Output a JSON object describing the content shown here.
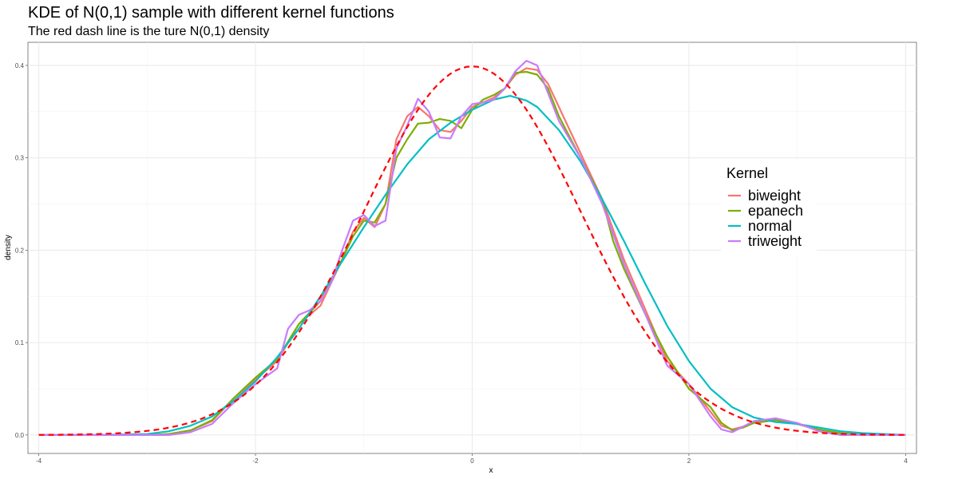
{
  "chart_data": {
    "type": "line",
    "title": "KDE of N(0,1) sample with different kernel functions",
    "subtitle": "The red dash line is the ture N(0,1) density",
    "xlabel": "x",
    "ylabel": "density",
    "xlim": [
      -4.1,
      4.1
    ],
    "ylim": [
      -0.02,
      0.425
    ],
    "x_ticks": [
      -4,
      -2,
      0,
      2,
      4
    ],
    "x_tick_labels": [
      "-4",
      "-2",
      "0",
      "2",
      "4"
    ],
    "y_ticks": [
      0.0,
      0.1,
      0.2,
      0.3,
      0.4
    ],
    "y_tick_labels": [
      "0.0",
      "0.1",
      "0.2",
      "0.3",
      "0.4"
    ],
    "grid": true,
    "legend": {
      "title": "Kernel",
      "position": "right",
      "entries": [
        "biweight",
        "epanech",
        "normal",
        "triweight"
      ]
    },
    "series": [
      {
        "name": "biweight",
        "color": "#F8766D",
        "points": [
          [
            -4,
            0
          ],
          [
            -3.5,
            0
          ],
          [
            -3,
            0
          ],
          [
            -2.8,
            0.001
          ],
          [
            -2.6,
            0.005
          ],
          [
            -2.4,
            0.015
          ],
          [
            -2.2,
            0.04
          ],
          [
            -2,
            0.06
          ],
          [
            -1.8,
            0.08
          ],
          [
            -1.6,
            0.12
          ],
          [
            -1.4,
            0.14
          ],
          [
            -1.2,
            0.19
          ],
          [
            -1.1,
            0.22
          ],
          [
            -1,
            0.235
          ],
          [
            -0.9,
            0.225
          ],
          [
            -0.8,
            0.25
          ],
          [
            -0.7,
            0.32
          ],
          [
            -0.6,
            0.345
          ],
          [
            -0.5,
            0.355
          ],
          [
            -0.4,
            0.345
          ],
          [
            -0.3,
            0.33
          ],
          [
            -0.2,
            0.328
          ],
          [
            -0.1,
            0.34
          ],
          [
            0,
            0.355
          ],
          [
            0.1,
            0.36
          ],
          [
            0.2,
            0.365
          ],
          [
            0.3,
            0.375
          ],
          [
            0.4,
            0.39
          ],
          [
            0.5,
            0.397
          ],
          [
            0.6,
            0.395
          ],
          [
            0.7,
            0.38
          ],
          [
            0.8,
            0.355
          ],
          [
            1,
            0.305
          ],
          [
            1.2,
            0.255
          ],
          [
            1.4,
            0.19
          ],
          [
            1.6,
            0.135
          ],
          [
            1.8,
            0.08
          ],
          [
            2,
            0.055
          ],
          [
            2.2,
            0.025
          ],
          [
            2.3,
            0.01
          ],
          [
            2.4,
            0.006
          ],
          [
            2.5,
            0.009
          ],
          [
            2.6,
            0.014
          ],
          [
            2.8,
            0.017
          ],
          [
            3,
            0.012
          ],
          [
            3.2,
            0.005
          ],
          [
            3.4,
            0.001
          ],
          [
            3.6,
            0
          ],
          [
            4,
            0
          ]
        ]
      },
      {
        "name": "epanech",
        "color": "#7CAE00",
        "points": [
          [
            -4,
            0
          ],
          [
            -3.5,
            0
          ],
          [
            -3,
            0
          ],
          [
            -2.8,
            0.001
          ],
          [
            -2.6,
            0.005
          ],
          [
            -2.4,
            0.016
          ],
          [
            -2.2,
            0.04
          ],
          [
            -2,
            0.062
          ],
          [
            -1.8,
            0.082
          ],
          [
            -1.6,
            0.12
          ],
          [
            -1.4,
            0.145
          ],
          [
            -1.2,
            0.19
          ],
          [
            -1.1,
            0.215
          ],
          [
            -1,
            0.232
          ],
          [
            -0.9,
            0.23
          ],
          [
            -0.8,
            0.25
          ],
          [
            -0.7,
            0.3
          ],
          [
            -0.6,
            0.32
          ],
          [
            -0.5,
            0.337
          ],
          [
            -0.4,
            0.338
          ],
          [
            -0.3,
            0.342
          ],
          [
            -0.2,
            0.34
          ],
          [
            -0.1,
            0.332
          ],
          [
            0,
            0.352
          ],
          [
            0.1,
            0.363
          ],
          [
            0.2,
            0.368
          ],
          [
            0.3,
            0.375
          ],
          [
            0.4,
            0.392
          ],
          [
            0.5,
            0.393
          ],
          [
            0.6,
            0.39
          ],
          [
            0.7,
            0.375
          ],
          [
            0.8,
            0.345
          ],
          [
            1,
            0.3
          ],
          [
            1.2,
            0.255
          ],
          [
            1.3,
            0.21
          ],
          [
            1.4,
            0.18
          ],
          [
            1.6,
            0.13
          ],
          [
            1.8,
            0.085
          ],
          [
            2,
            0.05
          ],
          [
            2.2,
            0.03
          ],
          [
            2.3,
            0.013
          ],
          [
            2.4,
            0.005
          ],
          [
            2.5,
            0.008
          ],
          [
            2.6,
            0.013
          ],
          [
            2.8,
            0.016
          ],
          [
            3,
            0.012
          ],
          [
            3.2,
            0.006
          ],
          [
            3.4,
            0.002
          ],
          [
            3.6,
            0
          ],
          [
            4,
            0
          ]
        ]
      },
      {
        "name": "normal",
        "color": "#00BFC4",
        "points": [
          [
            -4,
            0
          ],
          [
            -3.5,
            0
          ],
          [
            -3,
            0.001
          ],
          [
            -2.8,
            0.004
          ],
          [
            -2.6,
            0.01
          ],
          [
            -2.4,
            0.02
          ],
          [
            -2.2,
            0.037
          ],
          [
            -2,
            0.058
          ],
          [
            -1.8,
            0.084
          ],
          [
            -1.6,
            0.115
          ],
          [
            -1.4,
            0.15
          ],
          [
            -1.2,
            0.188
          ],
          [
            -1,
            0.225
          ],
          [
            -0.8,
            0.26
          ],
          [
            -0.6,
            0.293
          ],
          [
            -0.4,
            0.32
          ],
          [
            -0.2,
            0.338
          ],
          [
            0,
            0.352
          ],
          [
            0.2,
            0.363
          ],
          [
            0.35,
            0.367
          ],
          [
            0.5,
            0.362
          ],
          [
            0.6,
            0.355
          ],
          [
            0.8,
            0.33
          ],
          [
            1,
            0.296
          ],
          [
            1.2,
            0.255
          ],
          [
            1.4,
            0.21
          ],
          [
            1.6,
            0.163
          ],
          [
            1.8,
            0.118
          ],
          [
            2,
            0.08
          ],
          [
            2.2,
            0.05
          ],
          [
            2.4,
            0.03
          ],
          [
            2.6,
            0.019
          ],
          [
            2.8,
            0.014
          ],
          [
            3,
            0.012
          ],
          [
            3.2,
            0.008
          ],
          [
            3.4,
            0.004
          ],
          [
            3.6,
            0.002
          ],
          [
            3.8,
            0.001
          ],
          [
            4,
            0
          ]
        ]
      },
      {
        "name": "triweight",
        "color": "#C77CFF",
        "points": [
          [
            -4,
            0
          ],
          [
            -3.5,
            0
          ],
          [
            -3,
            0
          ],
          [
            -2.8,
            0
          ],
          [
            -2.6,
            0.003
          ],
          [
            -2.4,
            0.012
          ],
          [
            -2.2,
            0.035
          ],
          [
            -2,
            0.055
          ],
          [
            -1.8,
            0.072
          ],
          [
            -1.7,
            0.115
          ],
          [
            -1.6,
            0.13
          ],
          [
            -1.5,
            0.135
          ],
          [
            -1.4,
            0.145
          ],
          [
            -1.3,
            0.165
          ],
          [
            -1.2,
            0.2
          ],
          [
            -1.1,
            0.232
          ],
          [
            -1,
            0.238
          ],
          [
            -0.9,
            0.226
          ],
          [
            -0.8,
            0.232
          ],
          [
            -0.7,
            0.31
          ],
          [
            -0.6,
            0.335
          ],
          [
            -0.5,
            0.364
          ],
          [
            -0.4,
            0.35
          ],
          [
            -0.3,
            0.322
          ],
          [
            -0.2,
            0.321
          ],
          [
            -0.1,
            0.345
          ],
          [
            0,
            0.358
          ],
          [
            0.1,
            0.36
          ],
          [
            0.2,
            0.363
          ],
          [
            0.3,
            0.375
          ],
          [
            0.4,
            0.394
          ],
          [
            0.5,
            0.405
          ],
          [
            0.6,
            0.4
          ],
          [
            0.7,
            0.37
          ],
          [
            0.8,
            0.34
          ],
          [
            1,
            0.3
          ],
          [
            1.2,
            0.25
          ],
          [
            1.4,
            0.185
          ],
          [
            1.6,
            0.13
          ],
          [
            1.8,
            0.075
          ],
          [
            2,
            0.055
          ],
          [
            2.2,
            0.02
          ],
          [
            2.3,
            0.006
          ],
          [
            2.4,
            0.003
          ],
          [
            2.5,
            0.009
          ],
          [
            2.6,
            0.015
          ],
          [
            2.8,
            0.018
          ],
          [
            3,
            0.013
          ],
          [
            3.2,
            0.004
          ],
          [
            3.4,
            0
          ],
          [
            4,
            0
          ]
        ]
      },
      {
        "name": "true density",
        "color": "#FF0000",
        "dashed": true,
        "function": "normal_pdf",
        "x_range": [
          -4,
          4
        ]
      }
    ]
  }
}
